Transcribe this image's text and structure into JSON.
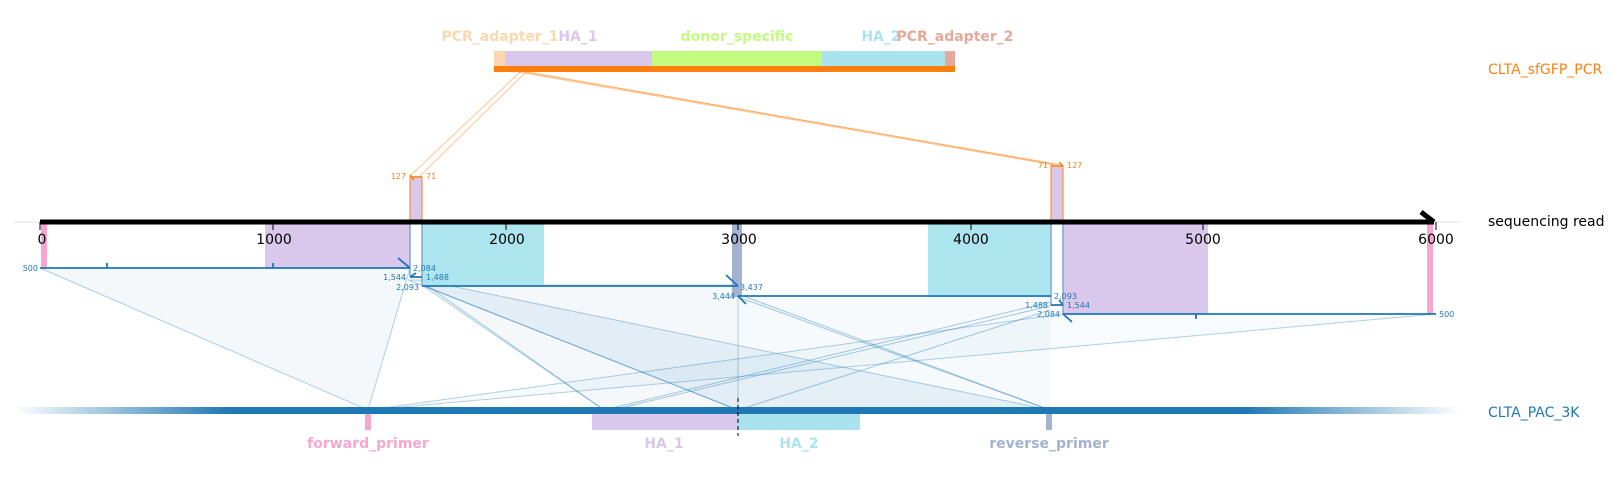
{
  "colors": {
    "orange": "#ff7f0e",
    "blue": "#1f77b4",
    "mid_blue": "#7ea6d8",
    "pink": "#f7a6d2",
    "lavender": "#d9c8ec",
    "cyan": "#a9e4ee",
    "lime": "#c3fb7e",
    "peach": "#fad7ae",
    "salmon": "#e6a89a",
    "slate": "#a2b2d1"
  },
  "tracks": {
    "pcr": "CLTA_sfGFP_PCR",
    "read": "sequencing read",
    "ref": "CLTA_PAC_3K"
  },
  "pcr_features": [
    "PCR_adapter_1",
    "HA_1",
    "donor_specific",
    "HA_2",
    "PCR_adapter_2"
  ],
  "ref_features": [
    "forward_primer",
    "HA_1",
    "HA_2",
    "reverse_primer"
  ],
  "axis_ticks": [
    "0",
    "1000",
    "2000",
    "3000",
    "4000",
    "5000",
    "6000"
  ],
  "insert_nums": {
    "left_a": "127",
    "left_b": "71",
    "right_a": "71",
    "right_b": "127"
  },
  "alignment_nums": {
    "r1": "500",
    "r1_end": "2,084",
    "r2_start": "1,544",
    "r2_end": "1,488",
    "r3_start": "2,093",
    "r3_end": "3,437",
    "r4_start": "3,444",
    "r4_end": "2,093",
    "r5_start": "1,488",
    "r5_end": "1,544",
    "r6_start": "2,084",
    "r6_end": "500"
  }
}
